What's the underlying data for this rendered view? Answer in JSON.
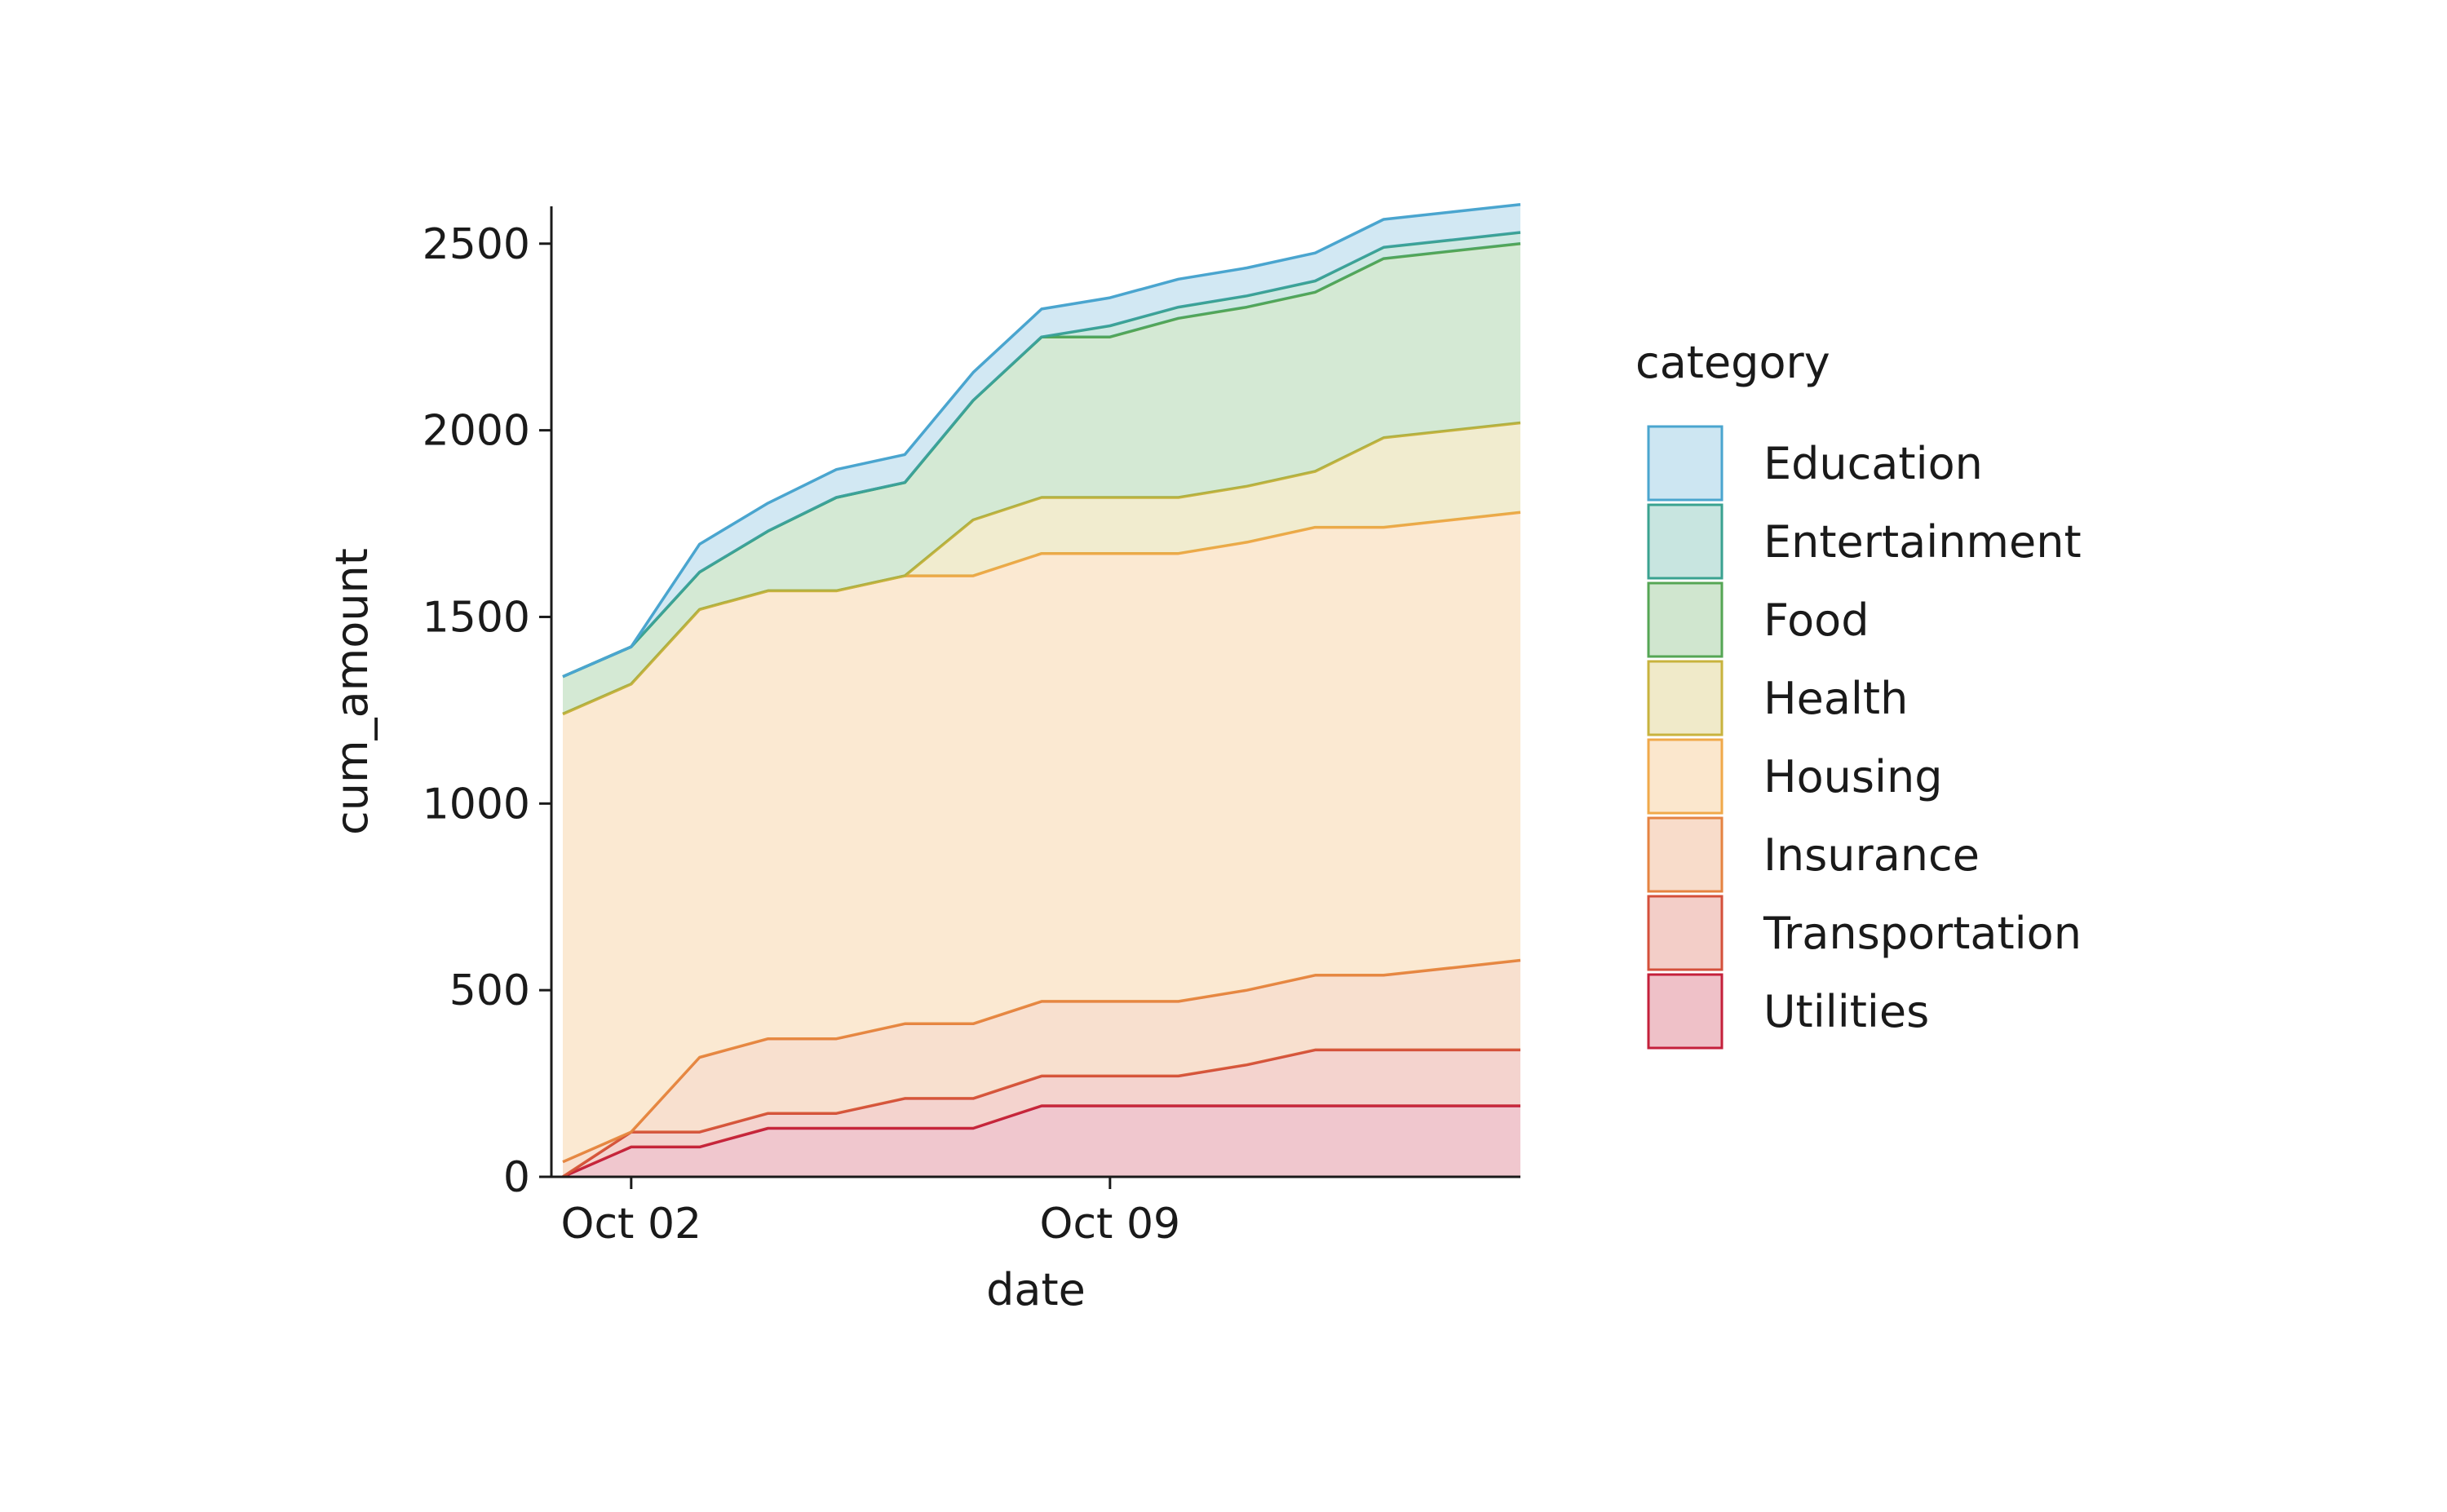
{
  "chart_data": {
    "type": "area",
    "stacked": true,
    "xlabel": "date",
    "ylabel": "cum_amount",
    "ylim": [
      0,
      2600
    ],
    "xlim": [
      "2023-09-30T20:00",
      "2023-10-15T00:00"
    ],
    "grid": false,
    "legend": {
      "title": "category",
      "placement": "right"
    },
    "x": [
      "2023-10-01",
      "2023-10-02",
      "2023-10-03",
      "2023-10-04",
      "2023-10-05",
      "2023-10-06",
      "2023-10-07",
      "2023-10-08",
      "2023-10-09",
      "2023-10-10",
      "2023-10-11",
      "2023-10-12",
      "2023-10-13",
      "2023-10-14",
      "2023-10-15"
    ],
    "y_ticks": [
      0,
      500,
      1000,
      1500,
      2000,
      2500
    ],
    "x_ticks": [
      {
        "date": "2023-10-02",
        "label": "Oct 02"
      },
      {
        "date": "2023-10-09",
        "label": "Oct 09"
      }
    ],
    "series": [
      {
        "name": "Utilities",
        "color": "#c4203b",
        "values": [
          0,
          80,
          80,
          130,
          130,
          130,
          130,
          190,
          190,
          190,
          190,
          190,
          190,
          190,
          190
        ]
      },
      {
        "name": "Transportation",
        "color": "#d4503b",
        "values": [
          0,
          40,
          40,
          40,
          40,
          80,
          80,
          80,
          80,
          80,
          110,
          150,
          150,
          150,
          150
        ]
      },
      {
        "name": "Insurance",
        "color": "#e58341",
        "values": [
          40,
          0,
          200,
          200,
          200,
          200,
          200,
          200,
          200,
          200,
          200,
          200,
          200,
          220,
          240
        ]
      },
      {
        "name": "Housing",
        "color": "#f0a94a",
        "values": [
          1200,
          1200,
          1200,
          1200,
          1200,
          1200,
          1200,
          1200,
          1200,
          1200,
          1200,
          1200,
          1200,
          1200,
          1200
        ]
      },
      {
        "name": "Health",
        "color": "#c8b33e",
        "values": [
          0,
          0,
          0,
          0,
          0,
          0,
          150,
          150,
          150,
          150,
          150,
          150,
          240,
          240,
          240
        ]
      },
      {
        "name": "Food",
        "color": "#55a654",
        "values": [
          100,
          100,
          100,
          160,
          250,
          250,
          320,
          430,
          430,
          480,
          480,
          480,
          480,
          480,
          480
        ]
      },
      {
        "name": "Entertainment",
        "color": "#3aa290",
        "values": [
          0,
          0,
          0,
          0,
          0,
          0,
          0,
          0,
          30,
          30,
          30,
          30,
          30,
          30,
          30
        ]
      },
      {
        "name": "Education",
        "color": "#4aa5cf",
        "values": [
          0,
          0,
          75,
          75,
          75,
          75,
          75,
          75,
          75,
          75,
          75,
          75,
          75,
          75,
          75
        ]
      }
    ],
    "legend_order": [
      "Education",
      "Entertainment",
      "Food",
      "Health",
      "Housing",
      "Insurance",
      "Transportation",
      "Utilities"
    ]
  }
}
